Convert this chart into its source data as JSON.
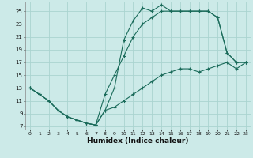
{
  "xlabel": "Humidex (Indice chaleur)",
  "bg_color": "#cceae8",
  "grid_color": "#aad4d0",
  "line_color": "#1a6b5a",
  "xlim": [
    -0.5,
    23.5
  ],
  "ylim": [
    6.5,
    26.5
  ],
  "xticks": [
    0,
    1,
    2,
    3,
    4,
    5,
    6,
    7,
    8,
    9,
    10,
    11,
    12,
    13,
    14,
    15,
    16,
    17,
    18,
    19,
    20,
    21,
    22,
    23
  ],
  "yticks": [
    7,
    9,
    11,
    13,
    15,
    17,
    19,
    21,
    23,
    25
  ],
  "line_A_x": [
    0,
    1,
    2,
    3,
    4,
    5,
    6,
    7,
    8,
    9,
    10,
    11,
    12,
    13,
    14,
    15,
    16,
    17,
    18,
    19,
    20,
    21,
    22,
    23
  ],
  "line_A_y": [
    13,
    12,
    11,
    9.5,
    8.5,
    8,
    7.5,
    7.2,
    9.5,
    13,
    20.5,
    23.5,
    25.5,
    25,
    26,
    25,
    25,
    25,
    25,
    25,
    24,
    18.5,
    17,
    17
  ],
  "line_B_x": [
    0,
    1,
    2,
    3,
    4,
    5,
    6,
    7,
    8,
    9,
    10,
    11,
    12,
    13,
    14,
    15,
    16,
    17,
    18,
    19,
    20,
    21,
    22,
    23
  ],
  "line_B_y": [
    13,
    12,
    11,
    9.5,
    8.5,
    8,
    7.5,
    7.2,
    12,
    15,
    18,
    21,
    23,
    24,
    25,
    25,
    25,
    25,
    25,
    25,
    24,
    18.5,
    17,
    17
  ],
  "line_C_x": [
    0,
    1,
    2,
    3,
    4,
    5,
    6,
    7,
    8,
    9,
    10,
    11,
    12,
    13,
    14,
    15,
    16,
    17,
    18,
    19,
    20,
    21,
    22,
    23
  ],
  "line_C_y": [
    13,
    12,
    11,
    9.5,
    8.5,
    8,
    7.5,
    7.2,
    9.5,
    10,
    11,
    12,
    13,
    14,
    15,
    15.5,
    16,
    16,
    15.5,
    16,
    16.5,
    17,
    16,
    17
  ]
}
